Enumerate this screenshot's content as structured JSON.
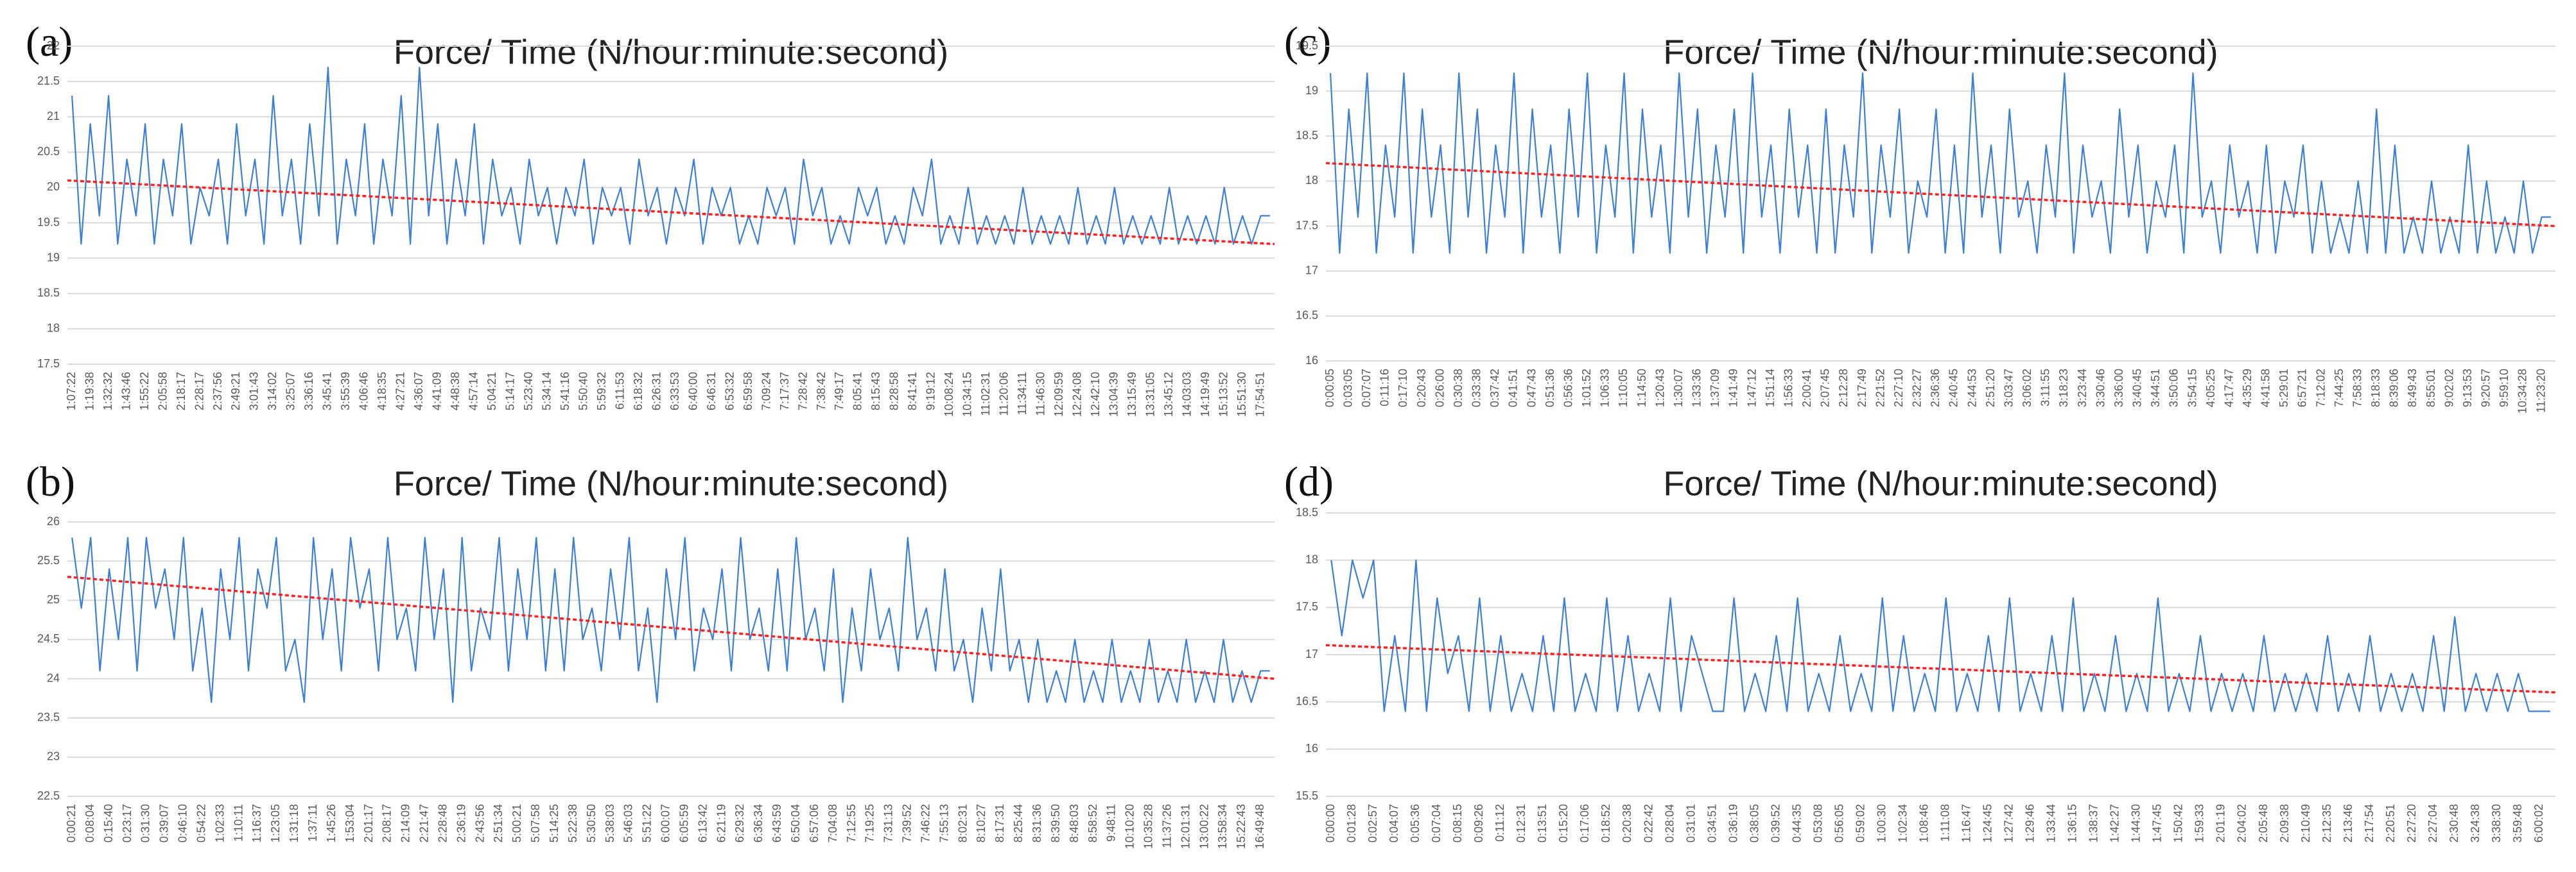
{
  "chart_data": [
    {
      "type": "line",
      "label": "(a)",
      "title": "Force/ Time (N/hour:minute:second)",
      "color": "#3d7fd6",
      "grid": true,
      "ylim": [
        17.5,
        22
      ],
      "yticks": [
        17.5,
        18,
        18.5,
        19,
        19.5,
        20,
        20.5,
        21,
        21.5,
        22
      ],
      "categories": [
        "1:07:22",
        null,
        "1:19:38",
        null,
        "1:32:32",
        null,
        "1:43:46",
        null,
        "1:55:22",
        null,
        "2:05:58",
        null,
        "2:18:17",
        null,
        "2:28:17",
        null,
        "2:37:56",
        null,
        "2:49:21",
        null,
        "3:01:43",
        null,
        "3:14:02",
        null,
        "3:25:07",
        null,
        "3:36:16",
        null,
        "3:45:41",
        null,
        "3:55:39",
        null,
        "4:06:46",
        null,
        "4:18:35",
        null,
        "4:27:21",
        null,
        "4:36:07",
        null,
        "4:41:09",
        null,
        "4:48:38",
        null,
        "4:57:14",
        null,
        "5:04:21",
        null,
        "5:14:17",
        null,
        "5:23:40",
        null,
        "5:34:14",
        null,
        "5:41:16",
        null,
        "5:50:40",
        null,
        "5:59:32",
        null,
        "6:11:53",
        null,
        "6:18:32",
        null,
        "6:26:31",
        null,
        "6:33:53",
        null,
        "6:40:00",
        null,
        "6:46:31",
        null,
        "6:53:32",
        null,
        "6:59:58",
        null,
        "7:09:24",
        null,
        "7:17:37",
        null,
        "7:28:42",
        null,
        "7:38:42",
        null,
        "7:49:17",
        null,
        "8:05:41",
        null,
        "8:15:43",
        null,
        "8:28:58",
        null,
        "8:41:41",
        null,
        "9:19:12",
        null,
        "10:08:24",
        null,
        "10:34:15",
        null,
        "11:02:31",
        null,
        "11:20:06",
        null,
        "11:34:11",
        null,
        "11:46:30",
        null,
        "12:09:59",
        null,
        "12:24:08",
        null,
        "12:42:10",
        null,
        "13:04:39",
        null,
        "13:15:49",
        null,
        "13:31:05",
        null,
        "13:45:12",
        null,
        "14:03:03",
        null,
        "14:19:49",
        null,
        "15:13:52",
        null,
        "15:51:30",
        null,
        "17:54:51",
        null
      ],
      "values": [
        21.3,
        19.2,
        20.9,
        19.6,
        21.3,
        19.2,
        20.4,
        19.6,
        20.9,
        19.2,
        20.4,
        19.6,
        20.9,
        19.2,
        20.0,
        19.6,
        20.4,
        19.2,
        20.9,
        19.6,
        20.4,
        19.2,
        21.3,
        19.6,
        20.4,
        19.2,
        20.9,
        19.6,
        21.7,
        19.2,
        20.4,
        19.6,
        20.9,
        19.2,
        20.4,
        19.6,
        21.3,
        19.2,
        21.7,
        19.6,
        20.9,
        19.2,
        20.4,
        19.6,
        20.9,
        19.2,
        20.4,
        19.6,
        20.0,
        19.2,
        20.4,
        19.6,
        20.0,
        19.2,
        20.0,
        19.6,
        20.4,
        19.2,
        20.0,
        19.6,
        20.0,
        19.2,
        20.4,
        19.6,
        20.0,
        19.2,
        20.0,
        19.6,
        20.4,
        19.2,
        20.0,
        19.6,
        20.0,
        19.2,
        19.6,
        19.2,
        20.0,
        19.6,
        20.0,
        19.2,
        20.4,
        19.6,
        20.0,
        19.2,
        19.6,
        19.2,
        20.0,
        19.6,
        20.0,
        19.2,
        19.6,
        19.2,
        20.0,
        19.6,
        20.4,
        19.2,
        19.6,
        19.2,
        20.0,
        19.2,
        19.6,
        19.2,
        19.6,
        19.2,
        20.0,
        19.2,
        19.6,
        19.2,
        19.6,
        19.2,
        20.0,
        19.2,
        19.6,
        19.2,
        20.0,
        19.2,
        19.6,
        19.2,
        19.6,
        19.2,
        20.0,
        19.2,
        19.6,
        19.2,
        19.6,
        19.2,
        20.0,
        19.2,
        19.6,
        19.2,
        19.6,
        19.6
      ],
      "trendline": {
        "color": "#ff2020",
        "values": [
          20.1,
          19.2
        ]
      }
    },
    {
      "type": "line",
      "label": "(b)",
      "title": "Force/ Time (N/hour:minute:second)",
      "color": "#3d7fd6",
      "grid": true,
      "ylim": [
        22.5,
        26
      ],
      "yticks": [
        22.5,
        23,
        23.5,
        24,
        24.5,
        25,
        25.5,
        26
      ],
      "categories": [
        "0:00:21",
        null,
        "0:08:04",
        null,
        "0:15:40",
        null,
        "0:23:17",
        null,
        "0:31:30",
        null,
        "0:39:07",
        null,
        "0:46:10",
        null,
        "0:54:22",
        null,
        "1:02:33",
        null,
        "1:10:11",
        null,
        "1:16:37",
        null,
        "1:23:05",
        null,
        "1:31:18",
        null,
        "1:37:11",
        null,
        "1:45:26",
        null,
        "1:53:04",
        null,
        "2:01:17",
        null,
        "2:08:17",
        null,
        "2:14:09",
        null,
        "2:21:47",
        null,
        "2:28:48",
        null,
        "2:36:19",
        null,
        "2:43:56",
        null,
        "2:51:34",
        null,
        "5:00:21",
        null,
        "5:07:58",
        null,
        "5:14:25",
        null,
        "5:22:38",
        null,
        "5:30:50",
        null,
        "5:38:03",
        null,
        "5:46:03",
        null,
        "5:51:22",
        null,
        "6:00:07",
        null,
        "6:05:59",
        null,
        "6:13:42",
        null,
        "6:21:19",
        null,
        "6:29:32",
        null,
        "6:36:34",
        null,
        "6:43:59",
        null,
        "6:50:04",
        null,
        "6:57:06",
        null,
        "7:04:08",
        null,
        "7:12:55",
        null,
        "7:19:25",
        null,
        "7:31:13",
        null,
        "7:39:52",
        null,
        "7:46:22",
        null,
        "7:55:13",
        null,
        "8:02:31",
        null,
        "8:10:27",
        null,
        "8:17:31",
        null,
        "8:25:44",
        null,
        "8:31:36",
        null,
        "8:39:50",
        null,
        "8:48:03",
        null,
        "8:58:52",
        null,
        "9:48:11",
        null,
        "10:10:20",
        null,
        "10:35:28",
        null,
        "11:37:26",
        null,
        "12:01:31",
        null,
        "13:00:22",
        null,
        "13:58:34",
        null,
        "15:22:43",
        null,
        "16:49:48",
        null
      ],
      "values": [
        25.8,
        24.9,
        25.8,
        24.1,
        25.4,
        24.5,
        25.8,
        24.1,
        25.8,
        24.9,
        25.4,
        24.5,
        25.8,
        24.1,
        24.9,
        23.7,
        25.4,
        24.5,
        25.8,
        24.1,
        25.4,
        24.9,
        25.8,
        24.1,
        24.5,
        23.7,
        25.8,
        24.5,
        25.4,
        24.1,
        25.8,
        24.9,
        25.4,
        24.1,
        25.8,
        24.5,
        24.9,
        24.1,
        25.8,
        24.5,
        25.4,
        23.7,
        25.8,
        24.1,
        24.9,
        24.5,
        25.8,
        24.1,
        25.4,
        24.5,
        25.8,
        24.1,
        25.4,
        24.1,
        25.8,
        24.5,
        24.9,
        24.1,
        25.4,
        24.5,
        25.8,
        24.1,
        24.9,
        23.7,
        25.4,
        24.5,
        25.8,
        24.1,
        24.9,
        24.5,
        25.4,
        24.1,
        25.8,
        24.5,
        24.9,
        24.1,
        25.4,
        24.1,
        25.8,
        24.5,
        24.9,
        24.1,
        25.4,
        23.7,
        24.9,
        24.1,
        25.4,
        24.5,
        24.9,
        24.1,
        25.8,
        24.5,
        24.9,
        24.1,
        25.4,
        24.1,
        24.5,
        23.7,
        24.9,
        24.1,
        25.4,
        24.1,
        24.5,
        23.7,
        24.5,
        23.7,
        24.1,
        23.7,
        24.5,
        23.7,
        24.1,
        23.7,
        24.5,
        23.7,
        24.1,
        23.7,
        24.5,
        23.7,
        24.1,
        23.7,
        24.5,
        23.7,
        24.1,
        23.7,
        24.5,
        23.7,
        24.1,
        23.7,
        24.1,
        24.1
      ],
      "trendline": {
        "color": "#ff2020",
        "values": [
          25.3,
          24.0
        ]
      }
    },
    {
      "type": "line",
      "label": "(c)",
      "title": "Force/ Time (N/hour:minute:second)",
      "color": "#3d7fd6",
      "grid": true,
      "ylim": [
        16,
        19.5
      ],
      "yticks": [
        16,
        16.5,
        17,
        17.5,
        18,
        18.5,
        19,
        19.5
      ],
      "categories": [
        "0:00:05",
        null,
        "0:03:05",
        null,
        "0:07:07",
        null,
        "0:11:16",
        null,
        "0:17:10",
        null,
        "0:20:43",
        null,
        "0:26:00",
        null,
        "0:30:38",
        null,
        "0:33:38",
        null,
        "0:37:42",
        null,
        "0:41:51",
        null,
        "0:47:43",
        null,
        "0:51:36",
        null,
        "0:56:36",
        null,
        "1:01:52",
        null,
        "1:06:33",
        null,
        "1:10:05",
        null,
        "1:14:50",
        null,
        "1:20:43",
        null,
        "1:30:07",
        null,
        "1:33:36",
        null,
        "1:37:09",
        null,
        "1:41:49",
        null,
        "1:47:12",
        null,
        "1:51:14",
        null,
        "1:56:33",
        null,
        "2:00:41",
        null,
        "2:07:45",
        null,
        "2:12:28",
        null,
        "2:17:49",
        null,
        "2:21:52",
        null,
        "2:27:10",
        null,
        "2:32:27",
        null,
        "2:36:36",
        null,
        "2:40:45",
        null,
        "2:44:53",
        null,
        "2:51:20",
        null,
        "3:03:47",
        null,
        "3:06:02",
        null,
        "3:11:55",
        null,
        "3:18:23",
        null,
        "3:23:44",
        null,
        "3:30:46",
        null,
        "3:36:00",
        null,
        "3:40:45",
        null,
        "3:44:51",
        null,
        "3:50:06",
        null,
        "3:54:15",
        null,
        "4:05:25",
        null,
        "4:17:47",
        null,
        "4:35:29",
        null,
        "4:41:58",
        null,
        "5:29:01",
        null,
        "6:57:21",
        null,
        "7:12:02",
        null,
        "7:44:25",
        null,
        "7:58:33",
        null,
        "8:18:33",
        null,
        "8:39:06",
        null,
        "8:49:43",
        null,
        "8:55:01",
        null,
        "9:02:02",
        null,
        "9:13:53",
        null,
        "9:20:57",
        null,
        "9:59:10",
        null,
        "10:34:28",
        null,
        "11:23:20",
        null
      ],
      "values": [
        19.2,
        17.2,
        18.8,
        17.6,
        19.2,
        17.2,
        18.4,
        17.6,
        19.2,
        17.2,
        18.8,
        17.6,
        18.4,
        17.2,
        19.2,
        17.6,
        18.8,
        17.2,
        18.4,
        17.6,
        19.2,
        17.2,
        18.8,
        17.6,
        18.4,
        17.2,
        18.8,
        17.6,
        19.2,
        17.2,
        18.4,
        17.6,
        19.2,
        17.2,
        18.8,
        17.6,
        18.4,
        17.2,
        19.2,
        17.6,
        18.8,
        17.2,
        18.4,
        17.6,
        18.8,
        17.2,
        19.2,
        17.6,
        18.4,
        17.2,
        18.8,
        17.6,
        18.4,
        17.2,
        18.8,
        17.2,
        18.4,
        17.6,
        19.2,
        17.2,
        18.4,
        17.6,
        18.8,
        17.2,
        18.0,
        17.6,
        18.8,
        17.2,
        18.4,
        17.2,
        19.2,
        17.6,
        18.4,
        17.2,
        18.8,
        17.6,
        18.0,
        17.2,
        18.4,
        17.6,
        19.2,
        17.2,
        18.4,
        17.6,
        18.0,
        17.2,
        18.8,
        17.6,
        18.4,
        17.2,
        18.0,
        17.6,
        18.4,
        17.2,
        19.2,
        17.6,
        18.0,
        17.2,
        18.4,
        17.6,
        18.0,
        17.2,
        18.4,
        17.2,
        18.0,
        17.6,
        18.4,
        17.2,
        18.0,
        17.2,
        17.6,
        17.2,
        18.0,
        17.2,
        18.8,
        17.2,
        18.4,
        17.2,
        17.6,
        17.2,
        18.0,
        17.2,
        17.6,
        17.2,
        18.4,
        17.2,
        18.0,
        17.2,
        17.6,
        17.2,
        18.0,
        17.2,
        17.6,
        17.6
      ],
      "trendline": {
        "color": "#ff2020",
        "values": [
          18.2,
          17.5
        ]
      }
    },
    {
      "type": "line",
      "label": "(d)",
      "title": "Force/ Time (N/hour:minute:second)",
      "color": "#3d7fd6",
      "grid": true,
      "ylim": [
        15.5,
        18.5
      ],
      "yticks": [
        15.5,
        16,
        16.5,
        17,
        17.5,
        18,
        18.5
      ],
      "categories": [
        "0:00:00",
        null,
        "0:01:28",
        null,
        "0:02:57",
        null,
        "0:04:07",
        null,
        "0:05:36",
        null,
        "0:07:04",
        null,
        "0:08:15",
        null,
        "0:09:26",
        null,
        "0:11:12",
        null,
        "0:12:31",
        null,
        "0:13:51",
        null,
        "0:15:20",
        null,
        "0:17:06",
        null,
        "0:18:52",
        null,
        "0:20:38",
        null,
        "0:22:42",
        null,
        "0:28:04",
        null,
        "0:31:01",
        null,
        "0:34:51",
        null,
        "0:36:19",
        null,
        "0:38:05",
        null,
        "0:39:52",
        null,
        "0:44:35",
        null,
        "0:53:08",
        null,
        "0:56:05",
        null,
        "0:59:02",
        null,
        "1:00:30",
        null,
        "1:02:34",
        null,
        "1:08:46",
        null,
        "1:11:08",
        null,
        "1:16:47",
        null,
        "1:24:45",
        null,
        "1:27:42",
        null,
        "1:29:46",
        null,
        "1:33:44",
        null,
        "1:36:15",
        null,
        "1:38:37",
        null,
        "1:42:27",
        null,
        "1:44:30",
        null,
        "1:47:45",
        null,
        "1:50:42",
        null,
        "1:59:33",
        null,
        "2:01:19",
        null,
        "2:04:02",
        null,
        "2:05:48",
        null,
        "2:09:38",
        null,
        "2:10:49",
        null,
        "2:12:35",
        null,
        "2:13:46",
        null,
        "2:17:54",
        null,
        "2:20:51",
        null,
        "2:27:20",
        null,
        "2:27:04",
        null,
        "2:30:48",
        null,
        "3:24:38",
        null,
        "3:38:30",
        null,
        "3:59:48",
        null,
        "6:00:02",
        null
      ],
      "values": [
        18.0,
        17.2,
        18.0,
        17.6,
        18.0,
        16.4,
        17.2,
        16.4,
        18.0,
        16.4,
        17.6,
        16.8,
        17.2,
        16.4,
        17.6,
        16.4,
        17.2,
        16.4,
        16.8,
        16.4,
        17.2,
        16.4,
        17.6,
        16.4,
        16.8,
        16.4,
        17.6,
        16.4,
        17.2,
        16.4,
        16.8,
        16.4,
        17.6,
        16.4,
        17.2,
        16.8,
        16.4,
        16.4,
        17.6,
        16.4,
        16.8,
        16.4,
        17.2,
        16.4,
        17.6,
        16.4,
        16.8,
        16.4,
        17.2,
        16.4,
        16.8,
        16.4,
        17.6,
        16.4,
        17.2,
        16.4,
        16.8,
        16.4,
        17.6,
        16.4,
        16.8,
        16.4,
        17.2,
        16.4,
        17.6,
        16.4,
        16.8,
        16.4,
        17.2,
        16.4,
        17.6,
        16.4,
        16.8,
        16.4,
        17.2,
        16.4,
        16.8,
        16.4,
        17.6,
        16.4,
        16.8,
        16.4,
        17.2,
        16.4,
        16.8,
        16.4,
        16.8,
        16.4,
        17.2,
        16.4,
        16.8,
        16.4,
        16.8,
        16.4,
        17.2,
        16.4,
        16.8,
        16.4,
        17.2,
        16.4,
        16.8,
        16.4,
        16.8,
        16.4,
        17.2,
        16.4,
        17.4,
        16.4,
        16.8,
        16.4,
        16.8,
        16.4,
        16.8,
        16.4,
        16.4,
        16.4
      ],
      "trendline": {
        "color": "#ff2020",
        "values": [
          17.1,
          16.6
        ]
      }
    }
  ]
}
